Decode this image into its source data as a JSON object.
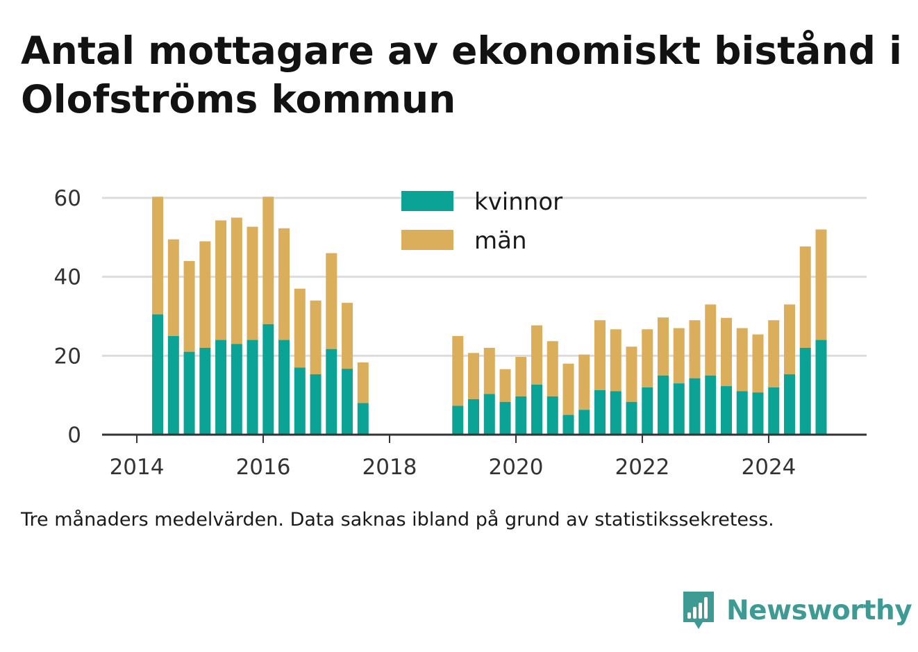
{
  "title": "Antal mottagare av ekonomiskt bistånd i Olofströms kommun",
  "subtitle": "Tre månaders medelvärden. Data saknas ibland på grund av statistikssekretess.",
  "brand": {
    "name": "Newsworthy",
    "icon": "newsworthy-logo-icon",
    "color": "#3e9b93"
  },
  "chart_data": {
    "type": "bar",
    "stacked": true,
    "x_axis": {
      "ticks": [
        "2014",
        "2016",
        "2018",
        "2020",
        "2022",
        "2024"
      ],
      "range": [
        2013.45,
        2025.55
      ]
    },
    "y_axis": {
      "ticks": [
        "0",
        "20",
        "40",
        "60"
      ],
      "range": [
        0,
        60
      ]
    },
    "grid": true,
    "legend_position": "top-center",
    "series": [
      {
        "name": "kvinnor",
        "color": "#0aa396"
      },
      {
        "name": "män",
        "color": "#dbae5c"
      }
    ],
    "x": [
      2014.33,
      2014.58,
      2014.83,
      2015.08,
      2015.33,
      2015.58,
      2015.83,
      2016.08,
      2016.33,
      2016.58,
      2016.83,
      2017.08,
      2017.33,
      2017.58,
      2019.08,
      2019.33,
      2019.58,
      2019.83,
      2020.08,
      2020.33,
      2020.58,
      2020.83,
      2021.08,
      2021.33,
      2021.58,
      2021.83,
      2022.08,
      2022.33,
      2022.58,
      2022.83,
      2023.08,
      2023.33,
      2023.58,
      2023.83,
      2024.08,
      2024.33,
      2024.58,
      2024.83
    ],
    "kvinnor": [
      30.5,
      25,
      21,
      22,
      24,
      23,
      24,
      28,
      24,
      17,
      15.3,
      21.7,
      16.7,
      8,
      7.3,
      9,
      10.3,
      8.3,
      9.7,
      12.7,
      9.7,
      5,
      6.3,
      11.3,
      11,
      8.3,
      12,
      15,
      13,
      14.3,
      15,
      12.3,
      11,
      10.7,
      12,
      15.3,
      22,
      24
    ],
    "män": [
      29.8,
      24.5,
      23,
      27,
      30.3,
      32,
      28.7,
      32.3,
      28.3,
      20,
      18.7,
      24.3,
      16.7,
      10.3,
      17.7,
      11.7,
      11.7,
      8.3,
      10,
      15,
      14,
      13,
      14,
      17.7,
      15.7,
      14,
      14.7,
      14.7,
      14,
      14.7,
      18,
      17.3,
      16,
      14.7,
      17,
      17.7,
      25.7,
      28
    ]
  }
}
